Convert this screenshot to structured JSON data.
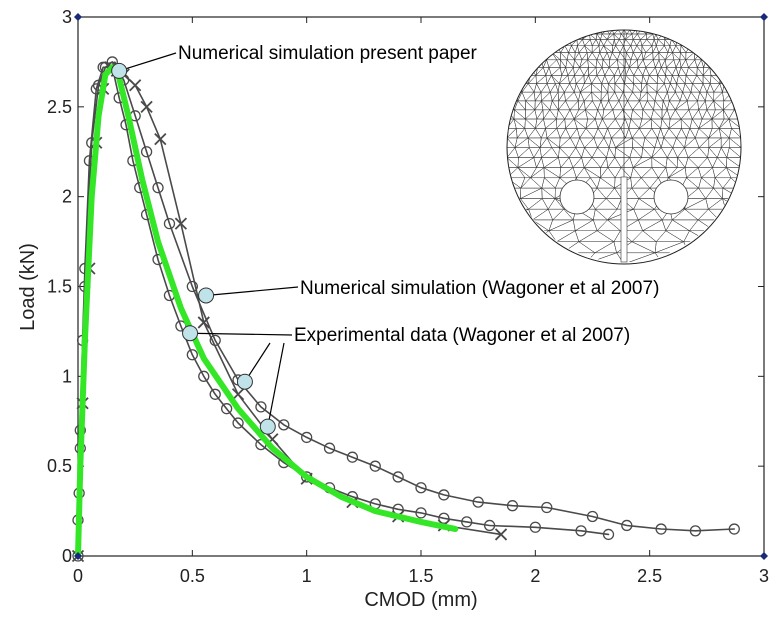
{
  "chart_data": {
    "type": "line",
    "xlabel": "CMOD (mm)",
    "ylabel": "Load (kN)",
    "xlim": [
      0,
      3
    ],
    "ylim": [
      0,
      3
    ],
    "xticks": [
      "0",
      "0.5",
      "1",
      "1.5",
      "2",
      "2.5",
      "3"
    ],
    "yticks": [
      "0",
      "0.5",
      "1",
      "1.5",
      "2",
      "2.5",
      "3"
    ],
    "grid": false,
    "series": [
      {
        "name": "Numerical simulation present paper",
        "color": "#33e626",
        "style": "thick-line",
        "x": [
          0,
          0.01,
          0.03,
          0.06,
          0.09,
          0.12,
          0.15,
          0.18,
          0.22,
          0.28,
          0.35,
          0.45,
          0.55,
          0.7,
          0.85,
          1.0,
          1.15,
          1.3,
          1.5,
          1.65
        ],
        "y": [
          0,
          0.5,
          1.2,
          2.0,
          2.45,
          2.68,
          2.72,
          2.66,
          2.45,
          2.1,
          1.75,
          1.38,
          1.1,
          0.82,
          0.6,
          0.44,
          0.33,
          0.25,
          0.19,
          0.15
        ]
      },
      {
        "name": "Numerical simulation (Wagoner et al 2007)",
        "color": "#4a4a4a",
        "marker": "x",
        "x": [
          0,
          0.02,
          0.05,
          0.08,
          0.11,
          0.14,
          0.17,
          0.2,
          0.25,
          0.3,
          0.36,
          0.45,
          0.55,
          0.7,
          0.85,
          1.0,
          1.2,
          1.4,
          1.6,
          1.85
        ],
        "y": [
          0,
          0.85,
          1.6,
          2.3,
          2.6,
          2.72,
          2.7,
          2.68,
          2.62,
          2.5,
          2.32,
          1.85,
          1.3,
          0.9,
          0.65,
          0.43,
          0.3,
          0.22,
          0.17,
          0.12
        ]
      },
      {
        "name": "Experimental data (Wagoner et al 2007)",
        "color": "#4a4a4a",
        "marker": "o",
        "x": [
          0,
          0.005,
          0.01,
          0.02,
          0.03,
          0.05,
          0.08,
          0.11,
          0.15,
          0.18,
          0.21,
          0.24,
          0.27,
          0.3,
          0.35,
          0.4,
          0.45,
          0.5,
          0.55,
          0.6,
          0.65,
          0.7,
          0.8,
          0.9,
          1.0,
          1.1,
          1.2,
          1.3,
          1.4,
          1.5,
          1.6,
          1.7,
          1.8,
          2.0,
          2.2,
          2.32
        ],
        "y": [
          0.2,
          0.35,
          0.7,
          1.2,
          1.6,
          2.2,
          2.6,
          2.72,
          2.72,
          2.55,
          2.4,
          2.2,
          2.05,
          1.9,
          1.65,
          1.45,
          1.28,
          1.12,
          1.0,
          0.9,
          0.82,
          0.74,
          0.62,
          0.52,
          0.44,
          0.38,
          0.33,
          0.29,
          0.26,
          0.24,
          0.21,
          0.19,
          0.17,
          0.16,
          0.14,
          0.12
        ]
      },
      {
        "name": "Experimental data (Wagoner et al 2007)",
        "color": "#4a4a4a",
        "marker": "o",
        "x": [
          0,
          0.01,
          0.03,
          0.06,
          0.09,
          0.12,
          0.15,
          0.2,
          0.25,
          0.3,
          0.35,
          0.4,
          0.5,
          0.6,
          0.7,
          0.8,
          0.9,
          1.0,
          1.1,
          1.2,
          1.3,
          1.4,
          1.5,
          1.6,
          1.75,
          1.9,
          2.05,
          2.25,
          2.4,
          2.55,
          2.7,
          2.87
        ],
        "y": [
          0,
          0.6,
          1.5,
          2.3,
          2.62,
          2.72,
          2.75,
          2.65,
          2.45,
          2.25,
          2.05,
          1.85,
          1.5,
          1.2,
          0.98,
          0.83,
          0.73,
          0.66,
          0.6,
          0.55,
          0.5,
          0.44,
          0.38,
          0.34,
          0.3,
          0.28,
          0.27,
          0.22,
          0.17,
          0.15,
          0.14,
          0.15
        ]
      }
    ],
    "annotations": [
      {
        "text": "Numerical simulation present paper",
        "point": [
          0.18,
          2.7
        ]
      },
      {
        "text": "Numerical simulation (Wagoner et al 2007)",
        "point": [
          0.56,
          1.45
        ]
      },
      {
        "text": "Experimental data (Wagoner et al 2007)",
        "point": [
          0.49,
          1.24
        ],
        "extra_points": [
          [
            0.73,
            0.97
          ],
          [
            0.83,
            0.72
          ]
        ]
      }
    ],
    "annotation_marker_color": "#bfe3e8",
    "inset": "finite element mesh of circular specimen with two holes"
  }
}
